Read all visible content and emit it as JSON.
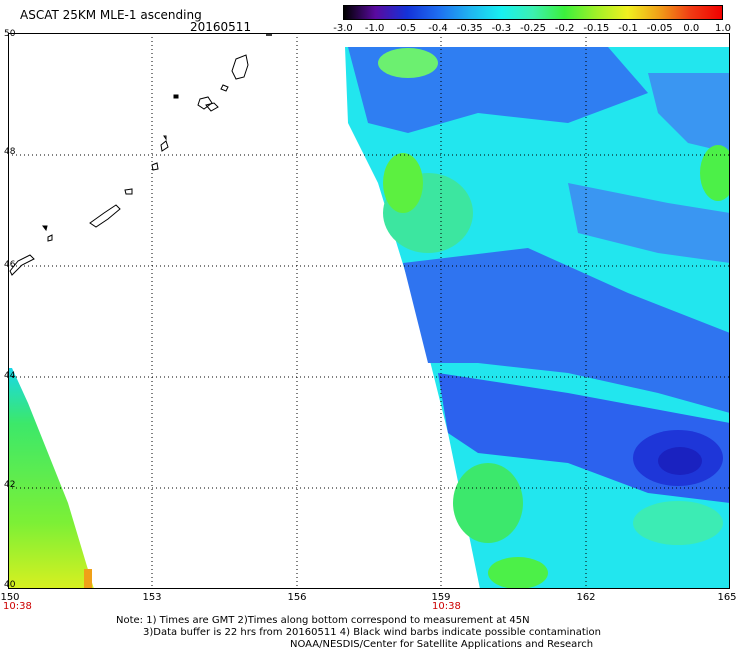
{
  "header": {
    "title": "ASCAT 25KM MLE-1 ascending",
    "date": "20160511"
  },
  "colorbar": {
    "ticks": [
      "-3.0",
      "-1.0",
      "-0.5",
      "-0.4",
      "-0.35",
      "-0.3",
      "-0.25",
      "-0.2",
      "-0.15",
      "-0.1",
      "-0.05",
      "0.0",
      "1.0"
    ],
    "colors": [
      "#000000",
      "#5a0aa0",
      "#1432d8",
      "#1e6ef0",
      "#20b4f0",
      "#18f0f0",
      "#3cf0b0",
      "#3cf03c",
      "#a0f028",
      "#f0f020",
      "#f0a018",
      "#f03c14",
      "#f00000"
    ]
  },
  "map": {
    "lon_labels": [
      "150",
      "153",
      "156",
      "159",
      "162",
      "165"
    ],
    "lat_labels": [
      "50",
      "48",
      "46",
      "44",
      "42",
      "40"
    ],
    "time_labels": [
      "10:38",
      "10:38"
    ]
  },
  "notes": {
    "line1": "Note: 1) Times are GMT 2)Times along bottom correspond to measurement at 45N",
    "line2": "3)Data buffer is 22 hrs from 20160511 4) Black wind barbs indicate possible contamination",
    "line3": "NOAA/NESDIS/Center for Satellite Applications and Research"
  }
}
